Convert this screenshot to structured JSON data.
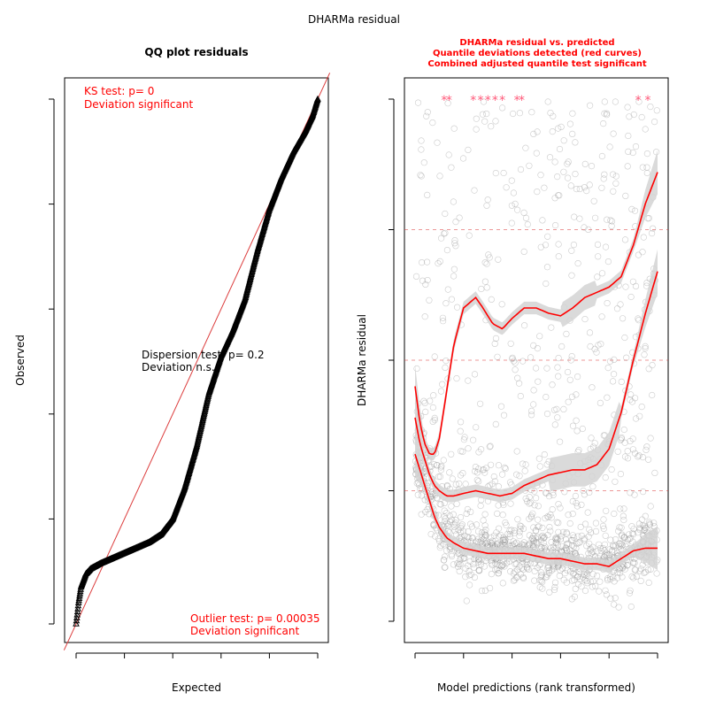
{
  "figure_title": "DHARMa residual",
  "colors": {
    "accent_red": "#ff0000",
    "reference_line": "#dc3c3c",
    "band_fill": "#d4d4d4",
    "points_dark": "#000000",
    "points_grey": "#9a9a9a",
    "outlier_star": "#ff5a7a"
  },
  "chart_data": [
    {
      "type": "scatter",
      "subtype": "qq-plot",
      "title": "QQ plot residuals",
      "xlabel": "Expected",
      "ylabel": "Observed",
      "xlim": [
        0,
        1
      ],
      "ylim": [
        0,
        1
      ],
      "x_ticks": [
        "0.0",
        "0.2",
        "0.4",
        "0.6",
        "0.8",
        "1.0"
      ],
      "y_ticks": [
        "0.0",
        "0.2",
        "0.4",
        "0.6",
        "0.8",
        "1.0"
      ],
      "reference_line": {
        "from": [
          0,
          0
        ],
        "to": [
          1,
          1
        ]
      },
      "qq_curve": {
        "x": [
          0.0,
          0.01,
          0.02,
          0.04,
          0.06,
          0.1,
          0.15,
          0.2,
          0.25,
          0.3,
          0.35,
          0.4,
          0.45,
          0.5,
          0.55,
          0.6,
          0.65,
          0.7,
          0.75,
          0.8,
          0.85,
          0.9,
          0.95,
          0.98,
          1.0
        ],
        "y": [
          0.0,
          0.04,
          0.07,
          0.095,
          0.105,
          0.115,
          0.125,
          0.135,
          0.145,
          0.155,
          0.17,
          0.2,
          0.26,
          0.34,
          0.44,
          0.51,
          0.56,
          0.62,
          0.71,
          0.79,
          0.85,
          0.9,
          0.94,
          0.97,
          1.0
        ]
      },
      "annotations": {
        "ks_test": "KS test: p= 0",
        "ks_deviation": "Deviation  significant",
        "dispersion_test": "Dispersion test: p= 0.2",
        "dispersion_deviation": "Deviation  n.s.",
        "outlier_test": "Outlier test: p= 0.00035",
        "outlier_deviation": "Deviation  significant"
      }
    },
    {
      "type": "scatter",
      "subtype": "residual-vs-predicted",
      "title_lines": [
        "DHARMa residual vs. predicted",
        "Quantile deviations detected (red curves)",
        "Combined adjusted quantile test significant"
      ],
      "xlabel": "Model predictions (rank transformed)",
      "ylabel": "DHARMa residual",
      "xlim": [
        0,
        1
      ],
      "ylim": [
        0,
        1
      ],
      "x_ticks": [
        "0.0",
        "0.2",
        "0.4",
        "0.6",
        "0.8",
        "1.0"
      ],
      "y_ticks": [
        "0.00",
        "0.25",
        "0.50",
        "0.75",
        "1.00"
      ],
      "reference_lines": [
        0.25,
        0.5,
        0.75
      ],
      "quantile_curves": [
        {
          "quantile": 0.25,
          "x": [
            0.0,
            0.02,
            0.04,
            0.06,
            0.08,
            0.1,
            0.13,
            0.16,
            0.2,
            0.25,
            0.3,
            0.35,
            0.4,
            0.45,
            0.5,
            0.55,
            0.6,
            0.65,
            0.7,
            0.75,
            0.8,
            0.85,
            0.9,
            0.95,
            1.0
          ],
          "y": [
            0.32,
            0.29,
            0.26,
            0.23,
            0.2,
            0.18,
            0.16,
            0.15,
            0.14,
            0.135,
            0.13,
            0.13,
            0.13,
            0.13,
            0.125,
            0.12,
            0.12,
            0.115,
            0.11,
            0.11,
            0.105,
            0.12,
            0.135,
            0.14,
            0.14
          ]
        },
        {
          "quantile": 0.5,
          "x": [
            0.0,
            0.02,
            0.04,
            0.06,
            0.08,
            0.1,
            0.13,
            0.16,
            0.2,
            0.25,
            0.3,
            0.35,
            0.4,
            0.45,
            0.5,
            0.55,
            0.6,
            0.65,
            0.7,
            0.75,
            0.8,
            0.85,
            0.9,
            0.95,
            1.0
          ],
          "y": [
            0.39,
            0.34,
            0.31,
            0.28,
            0.26,
            0.25,
            0.24,
            0.24,
            0.245,
            0.25,
            0.245,
            0.24,
            0.245,
            0.26,
            0.27,
            0.28,
            0.285,
            0.29,
            0.29,
            0.3,
            0.33,
            0.4,
            0.5,
            0.59,
            0.67
          ]
        },
        {
          "quantile": 0.75,
          "x": [
            0.0,
            0.02,
            0.04,
            0.06,
            0.08,
            0.1,
            0.13,
            0.16,
            0.2,
            0.25,
            0.28,
            0.32,
            0.36,
            0.4,
            0.45,
            0.5,
            0.55,
            0.6,
            0.65,
            0.7,
            0.75,
            0.8,
            0.85,
            0.9,
            0.95,
            1.0
          ],
          "y": [
            0.45,
            0.38,
            0.34,
            0.32,
            0.32,
            0.35,
            0.44,
            0.53,
            0.6,
            0.62,
            0.6,
            0.57,
            0.56,
            0.58,
            0.6,
            0.6,
            0.59,
            0.585,
            0.6,
            0.62,
            0.63,
            0.64,
            0.66,
            0.72,
            0.8,
            0.86
          ]
        }
      ],
      "outlier_markers_at_1": [
        0.12,
        0.14,
        0.24,
        0.27,
        0.3,
        0.33,
        0.36,
        0.42,
        0.44,
        0.92,
        0.96
      ]
    }
  ]
}
